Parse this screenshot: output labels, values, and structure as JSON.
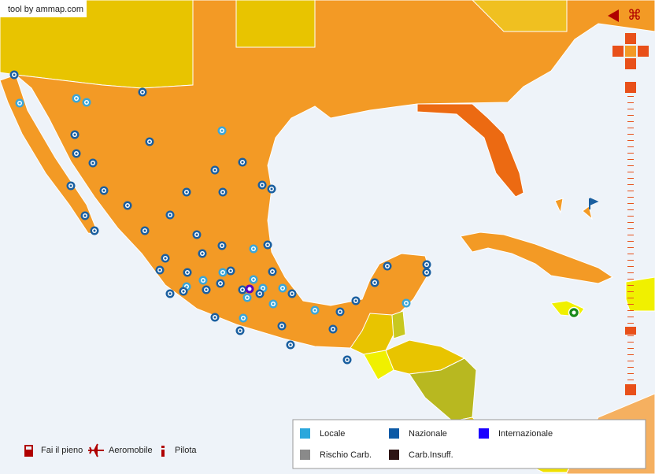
{
  "header": {
    "credit": "tool by ammap.com"
  },
  "legend": {
    "items": [
      {
        "label": "Locale",
        "color": "#2aa7dc"
      },
      {
        "label": "Nazionale",
        "color": "#0c5aa6"
      },
      {
        "label": "Internazionale",
        "color": "#1a00ff"
      },
      {
        "label": "Rischio Carb.",
        "color": "#8a8a8a"
      },
      {
        "label": "Carb.Insuff.",
        "color": "#2e1414"
      }
    ]
  },
  "toolbar": {
    "items": [
      {
        "label": "Fai il pieno"
      },
      {
        "label": "Aeromobile"
      },
      {
        "label": "Pilota"
      }
    ]
  }
}
